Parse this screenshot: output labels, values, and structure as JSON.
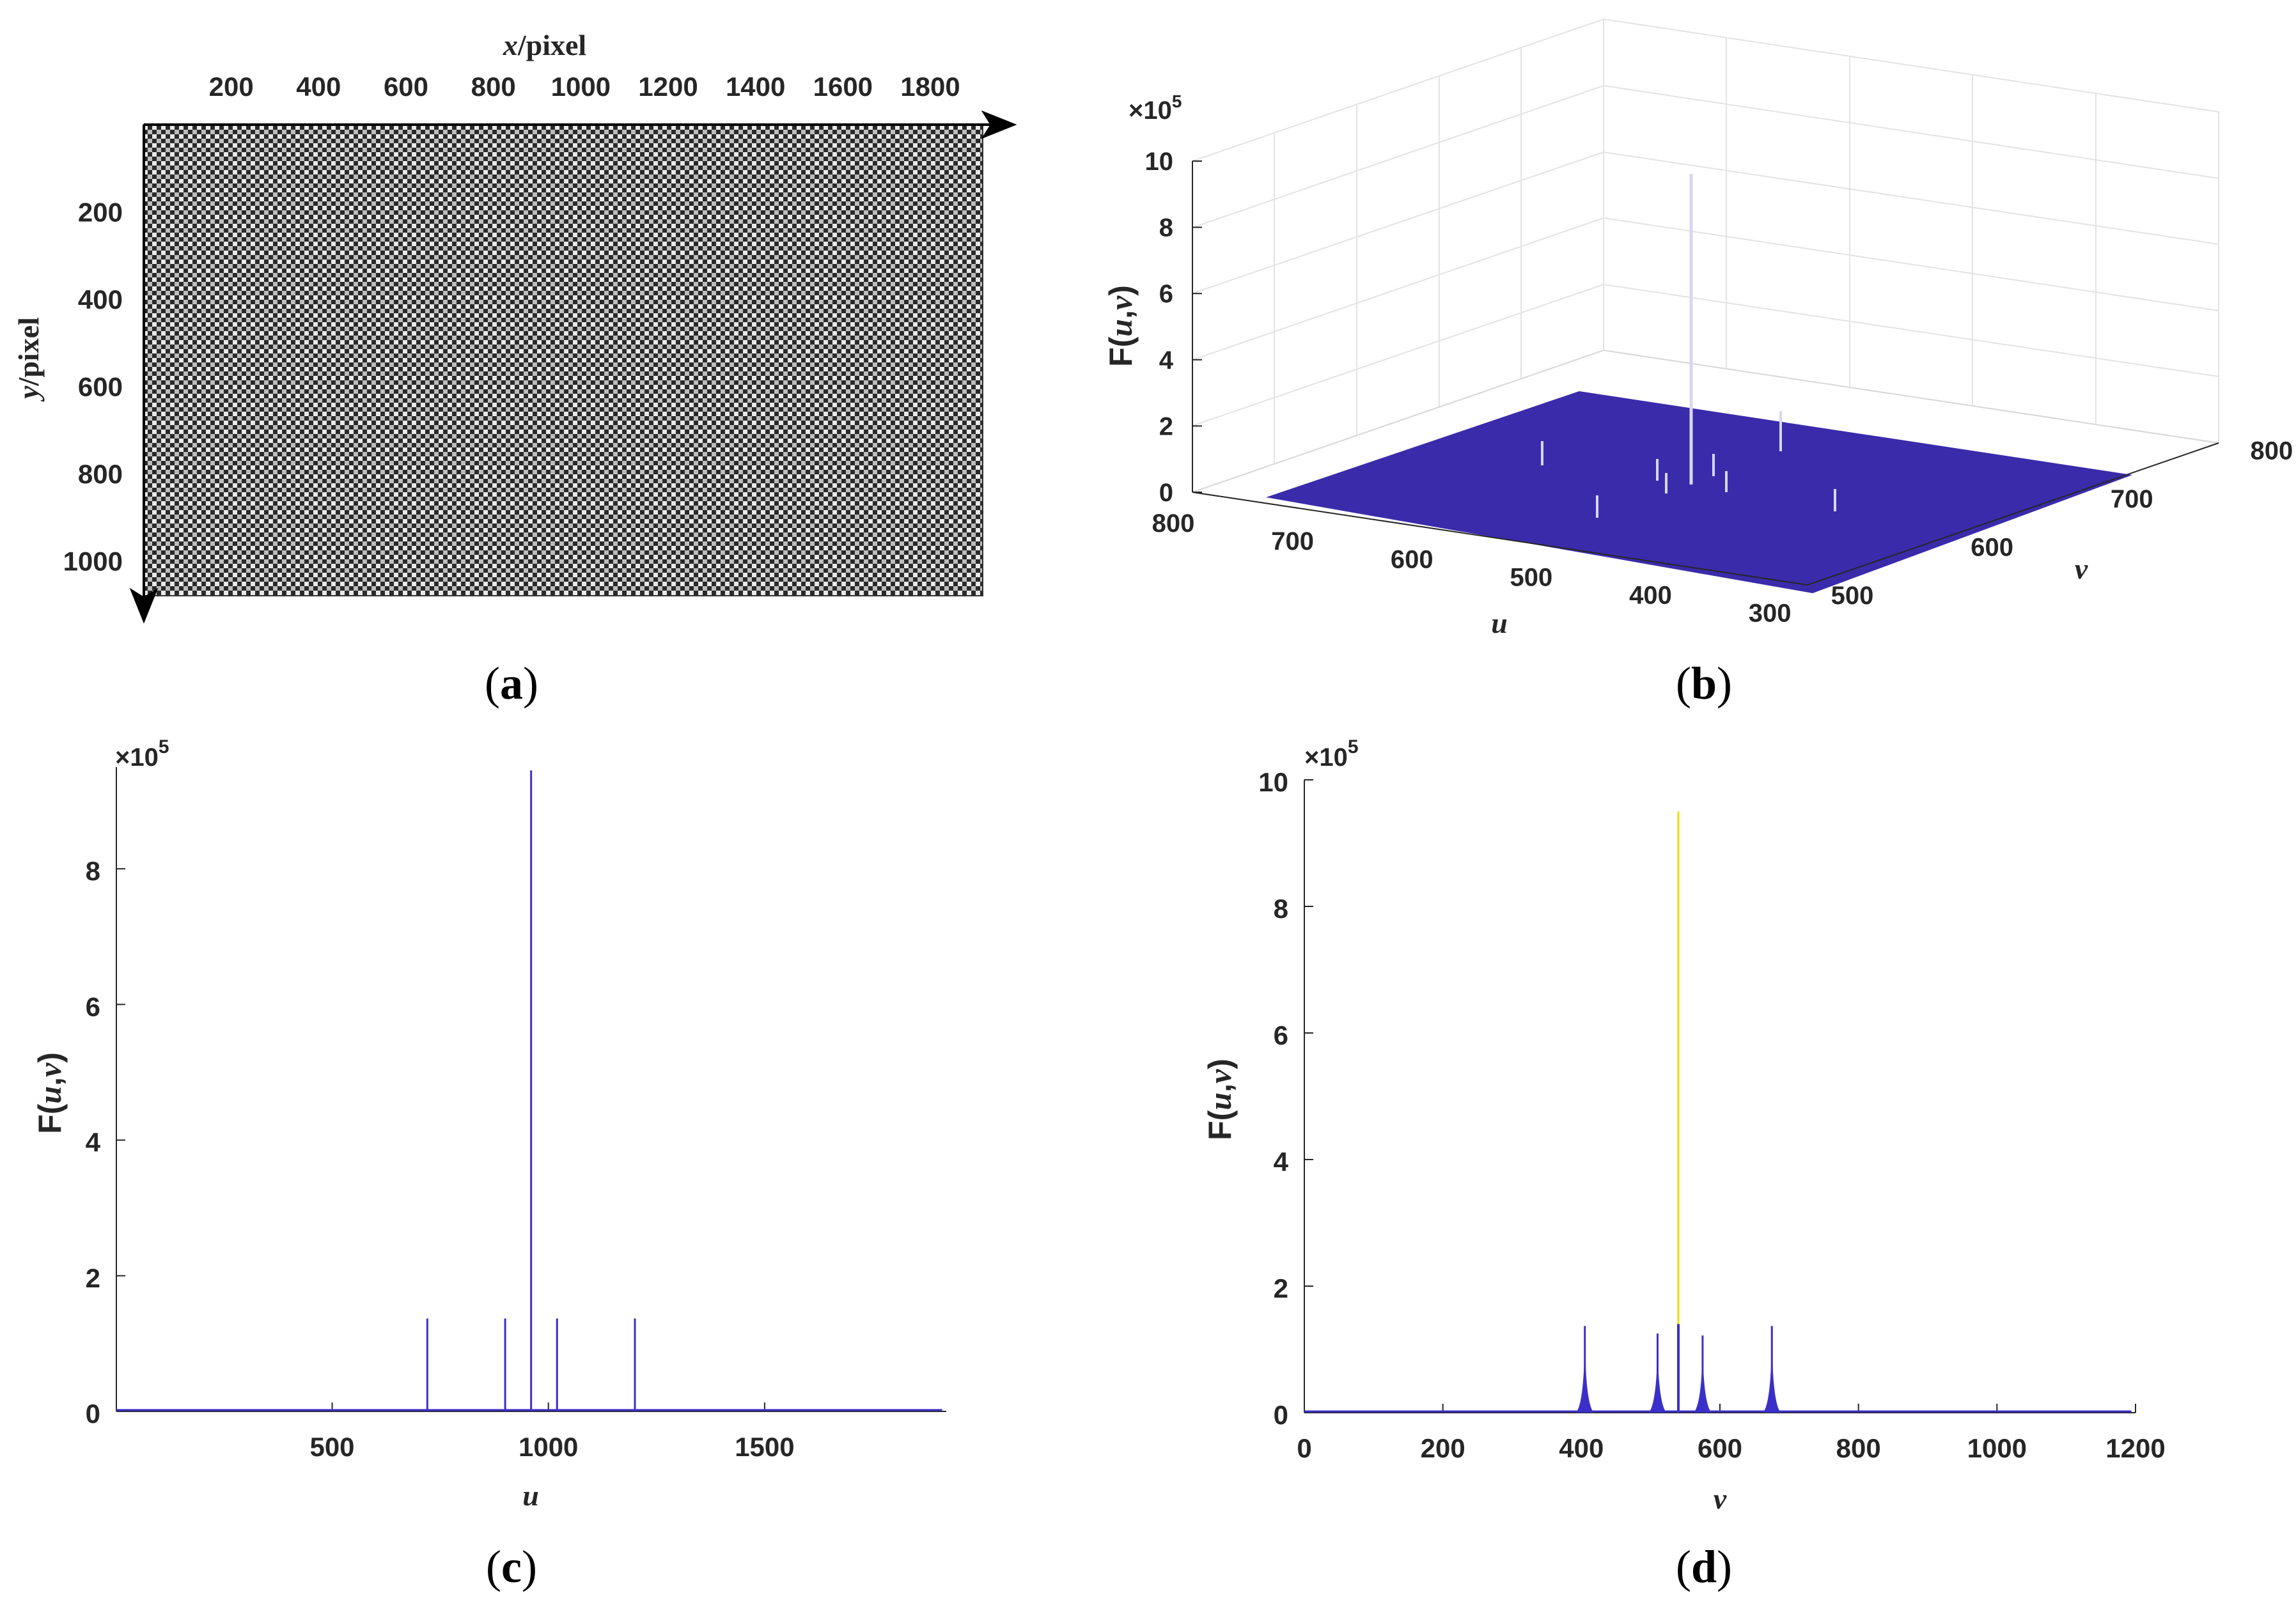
{
  "captions": {
    "a": "a",
    "b": "b",
    "c": "c",
    "d": "d"
  },
  "chart_data": [
    {
      "id": "a",
      "type": "heatmap",
      "title": "",
      "xlabel_italic": "x",
      "xlabel_rest": "/pixel",
      "ylabel_italic": "y",
      "ylabel_rest": "/pixel",
      "xticks": [
        200,
        400,
        600,
        800,
        1000,
        1200,
        1400,
        1600,
        1800
      ],
      "yticks": [
        200,
        400,
        600,
        800,
        1000
      ],
      "xlim": [
        0,
        1920
      ],
      "ylim": [
        0,
        1080
      ],
      "pattern": "checkerboard grating"
    },
    {
      "id": "b",
      "type": "surface3d",
      "zlabel_prefix": "F(",
      "zlabel_u": "u",
      "zlabel_sep": ",",
      "zlabel_v": "v",
      "zlabel_suffix": ")",
      "exponent_base": "×10",
      "exponent_power": "5",
      "xlabel": "u",
      "ylabel": "v",
      "zticks": [
        "0",
        "2",
        "4",
        "6",
        "8",
        "10"
      ],
      "uticks": [
        "800",
        "700",
        "600",
        "500",
        "400",
        "300"
      ],
      "vticks": [
        "500",
        "600",
        "700",
        "800"
      ],
      "zlim": [
        0,
        10
      ],
      "surface_color": "#3A2BAA"
    },
    {
      "id": "c",
      "type": "line",
      "xlabel": "u",
      "ylabel_prefix": "F(",
      "ylabel_u": "u",
      "ylabel_sep": ",",
      "ylabel_v": "v",
      "ylabel_suffix": ")",
      "exponent_base": "×10",
      "exponent_power": "5",
      "xlim": [
        1,
        1920
      ],
      "ylim": [
        0,
        9.5
      ],
      "xticks": [
        500,
        1000,
        1500
      ],
      "yticks": [
        0,
        2,
        4,
        6,
        8
      ],
      "color": "#3B2FC9",
      "x": [
        720,
        900,
        960,
        1020,
        1200
      ],
      "y": [
        1.37,
        1.37,
        9.45,
        1.37,
        1.37
      ]
    },
    {
      "id": "d",
      "type": "line",
      "xlabel": "v",
      "ylabel_prefix": "F(",
      "ylabel_u": "u",
      "ylabel_sep": ",",
      "ylabel_v": "v",
      "ylabel_suffix": ")",
      "exponent_base": "×10",
      "exponent_power": "5",
      "xlim": [
        0,
        1200
      ],
      "ylim": [
        0,
        10
      ],
      "xticks": [
        0,
        200,
        400,
        600,
        800,
        1000,
        1200
      ],
      "yticks": [
        0,
        2,
        4,
        6,
        8,
        10
      ],
      "color": "#3B2FC9",
      "highlight_color": "#E8E000",
      "x": [
        405,
        510,
        540,
        575,
        675
      ],
      "y": [
        1.37,
        1.25,
        9.5,
        1.22,
        1.37
      ]
    }
  ]
}
